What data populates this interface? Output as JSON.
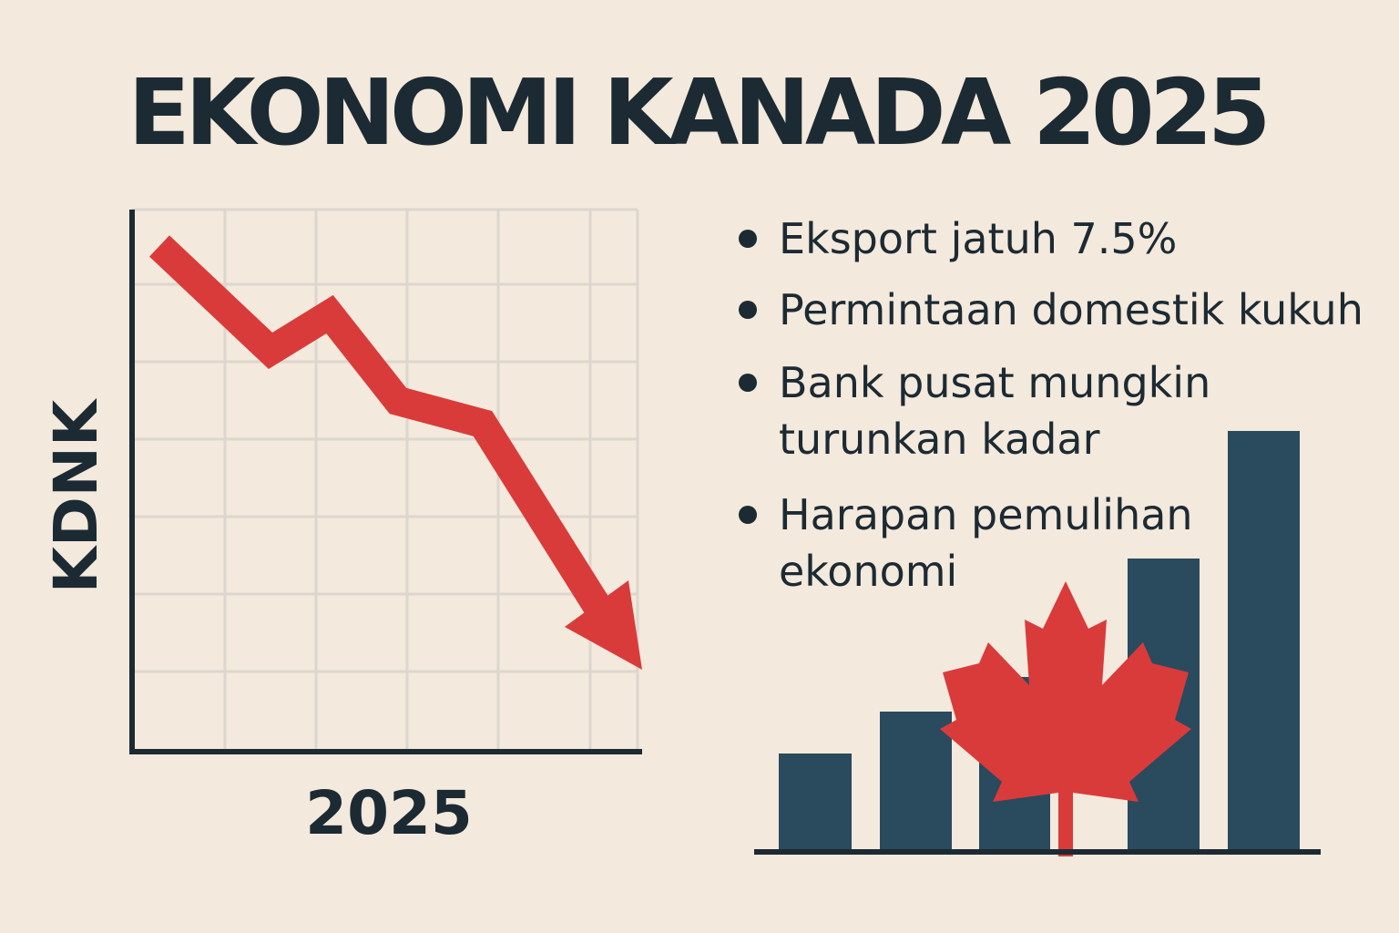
{
  "title": "EKONOMI KANADA 2025",
  "line_chart": {
    "y_label": "KDNK",
    "x_label": "2025"
  },
  "bullets": [
    [
      "Eksport jatuh 7.5%"
    ],
    [
      "Permintaan domestik kukuh"
    ],
    [
      "Bank pusat mungkin",
      "turunkan kadar"
    ],
    [
      "Harapan pemulihan",
      "ekonomi"
    ]
  ]
}
